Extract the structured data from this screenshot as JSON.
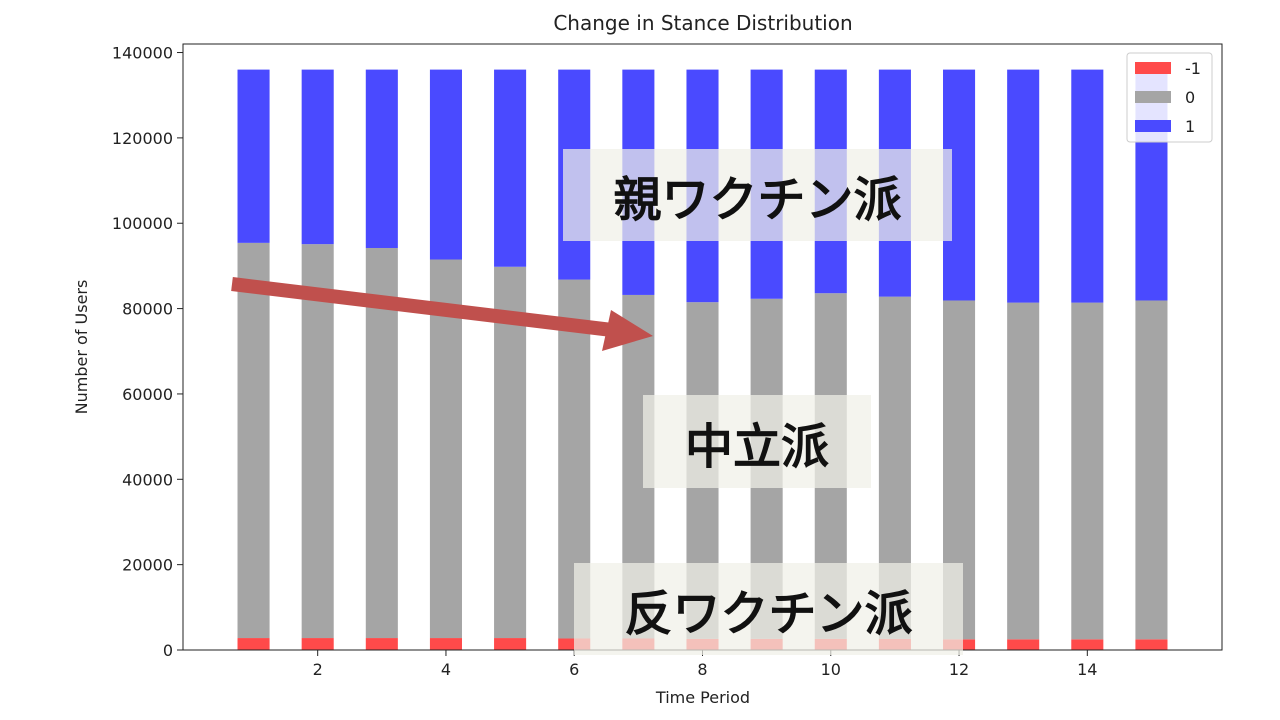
{
  "chart_data": {
    "type": "bar",
    "stacked": true,
    "title": "Change in Stance Distribution",
    "xlabel": "Time Period",
    "ylabel": "Number of Users",
    "x": [
      1,
      2,
      3,
      4,
      5,
      6,
      7,
      8,
      9,
      10,
      11,
      12,
      13,
      14,
      15
    ],
    "xticks": [
      2,
      4,
      6,
      8,
      10,
      12,
      14
    ],
    "xlim": [
      -0.1,
      16.1
    ],
    "yticks": [
      0,
      20000,
      40000,
      60000,
      80000,
      100000,
      120000,
      140000
    ],
    "ylim": [
      0,
      142000
    ],
    "legend_position": "top-right",
    "series": [
      {
        "name": "-1",
        "color": "#ff4a4a",
        "values": [
          2800,
          2800,
          2800,
          2800,
          2800,
          2700,
          2700,
          2600,
          2600,
          2600,
          2600,
          2500,
          2500,
          2500,
          2500
        ]
      },
      {
        "name": "0",
        "color": "#a5a5a5",
        "values": [
          92600,
          92300,
          91400,
          88700,
          87000,
          84100,
          80500,
          78900,
          79700,
          81000,
          80200,
          79400,
          78900,
          78900,
          79400
        ]
      },
      {
        "name": "1",
        "color": "#4a4aff",
        "values": [
          40600,
          40900,
          41800,
          44500,
          46200,
          49200,
          52800,
          54500,
          53700,
          52400,
          53200,
          54100,
          54600,
          54600,
          54100
        ]
      }
    ]
  },
  "annotations": {
    "pro_vaccine": "親ワクチン派",
    "neutral": "中立派",
    "anti_vaccine": "反ワクチン派",
    "arrow_color": "#c0504d"
  }
}
